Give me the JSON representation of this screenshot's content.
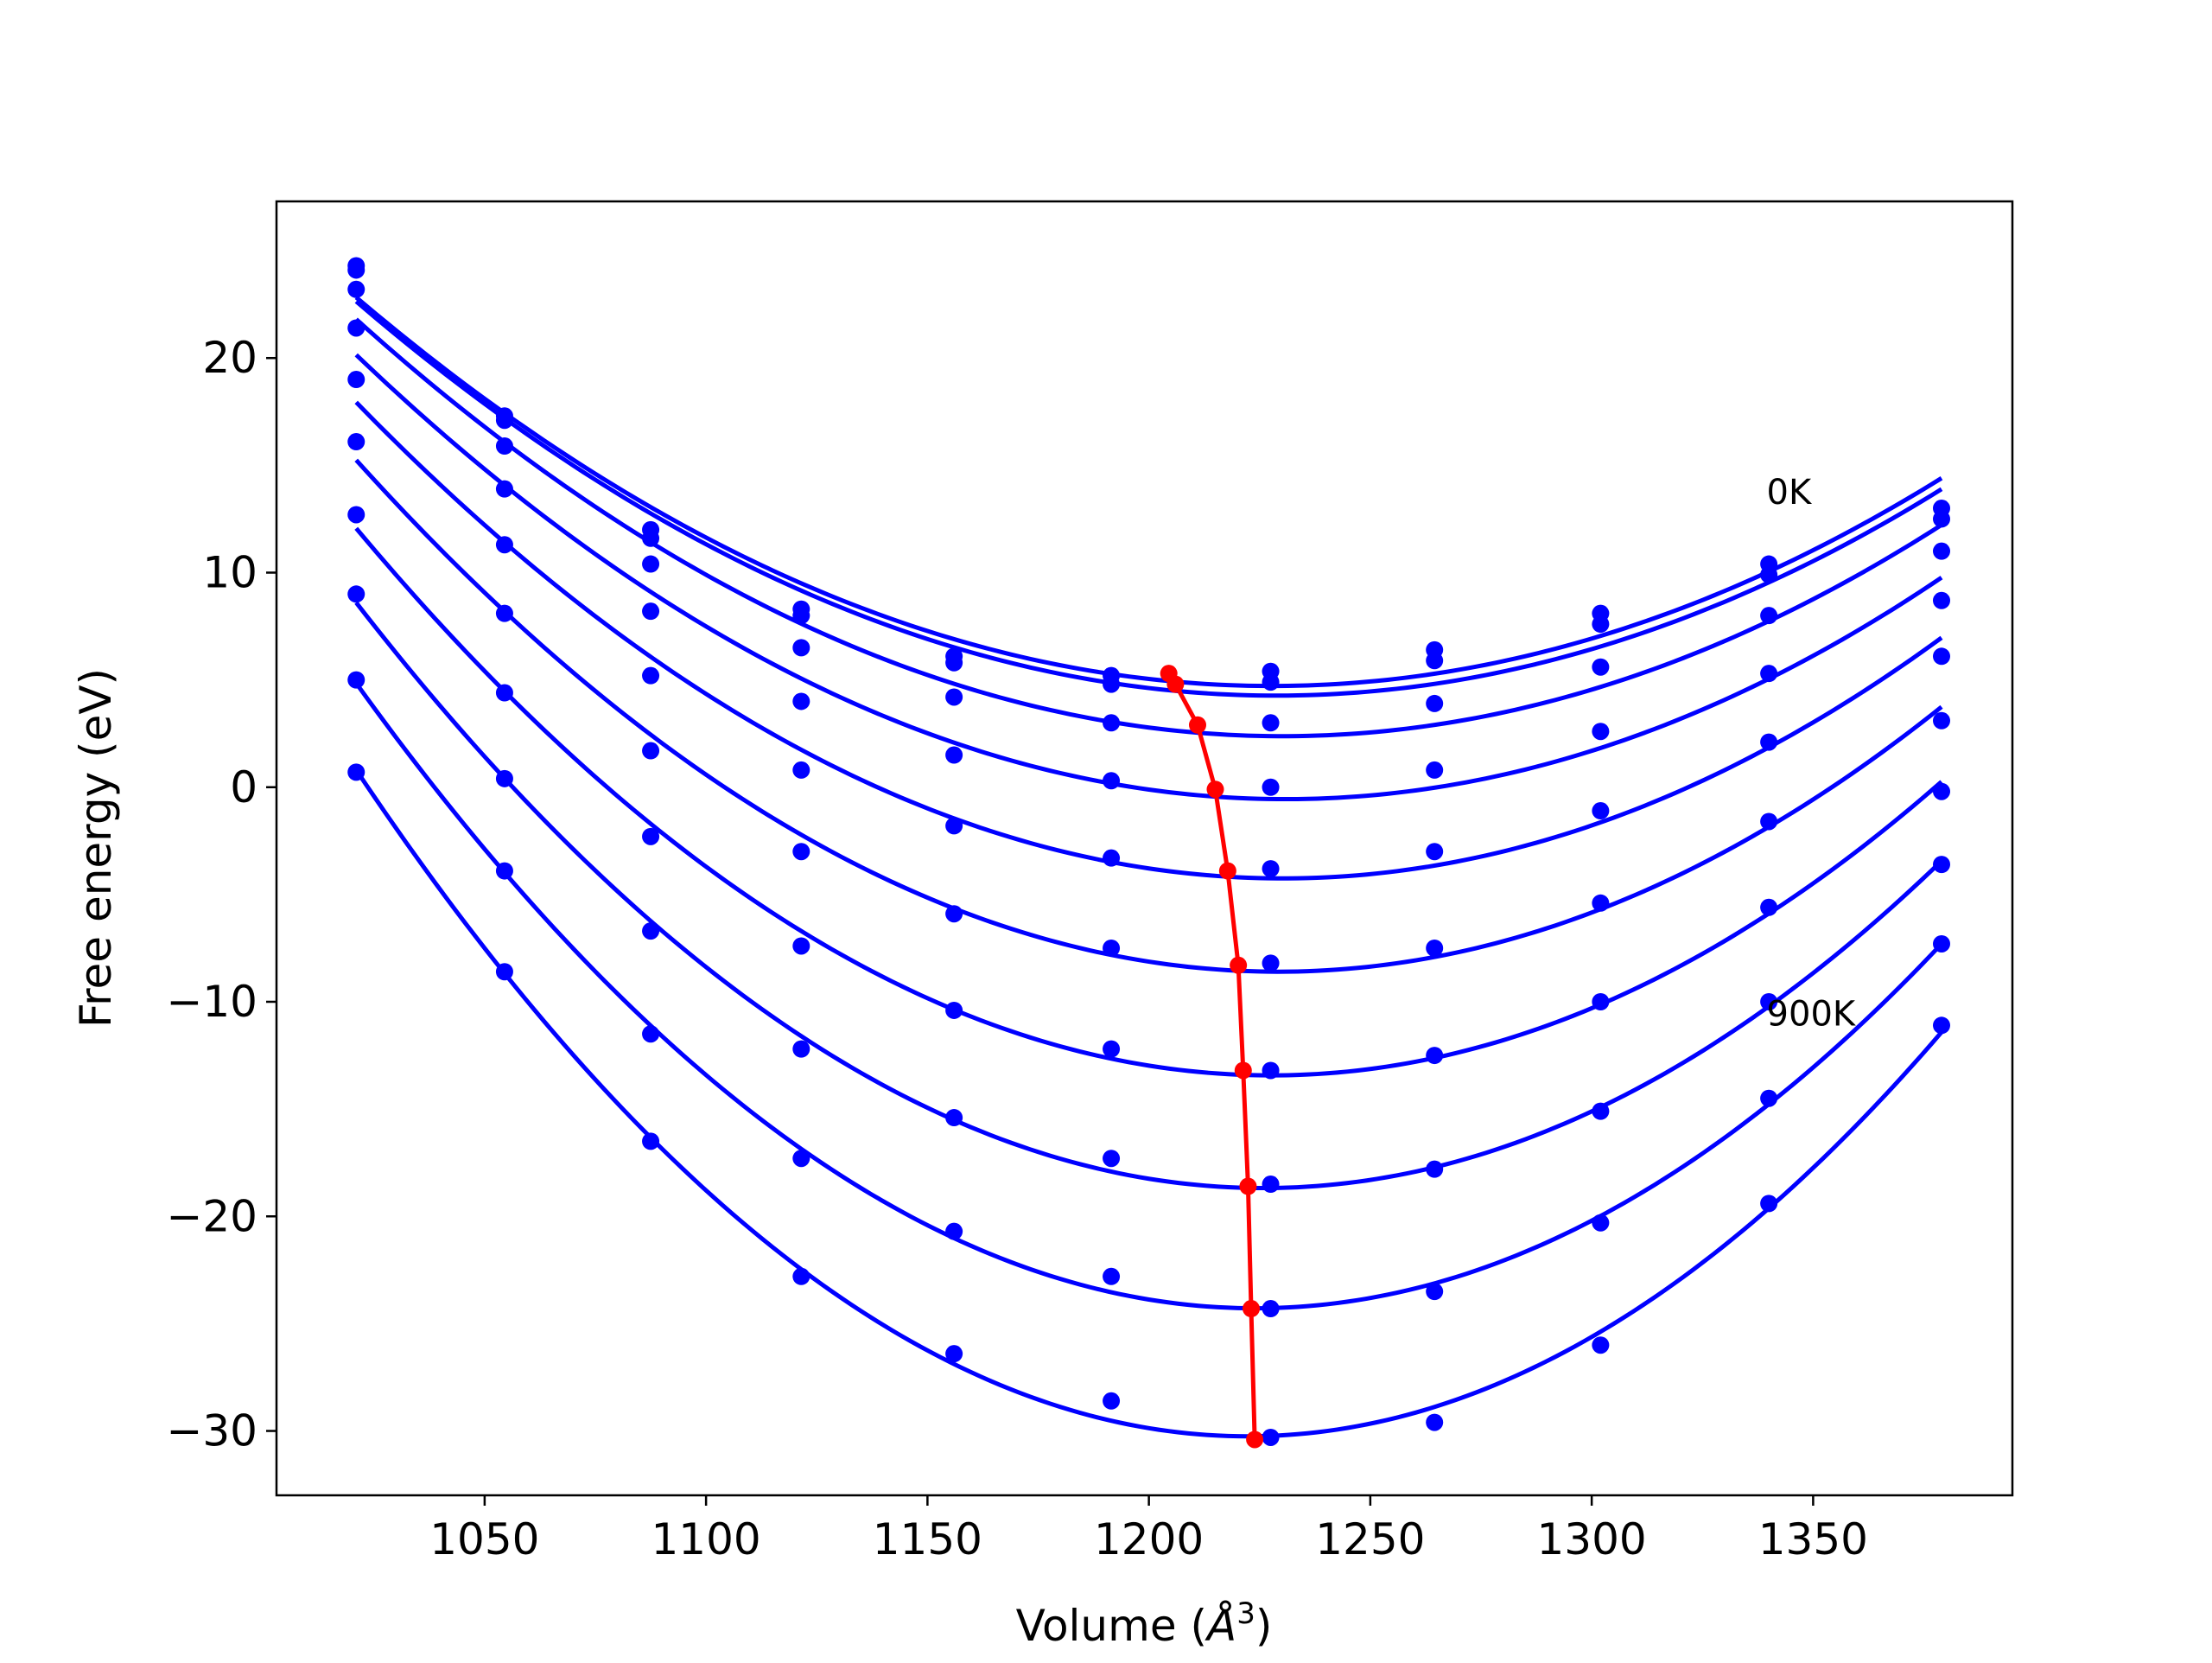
{
  "chart_data": {
    "type": "line",
    "xlabel": "Volume",
    "xlabel_unit": "Å",
    "xlabel_unit_exponent": "3",
    "ylabel": "Free energy (eV)",
    "xlim": [
      1003,
      1395
    ],
    "ylim": [
      -33,
      27.3
    ],
    "xticks": [
      1050,
      1100,
      1150,
      1200,
      1250,
      1300,
      1350
    ],
    "xtick_labels": [
      "1050",
      "1100",
      "1150",
      "1200",
      "1250",
      "1300",
      "1350"
    ],
    "yticks": [
      20,
      10,
      0,
      -10,
      -20,
      -30
    ],
    "ytick_labels": [
      "20",
      "10",
      "0",
      "−10",
      "−20",
      "−30"
    ],
    "grid": false,
    "legend": "none",
    "colors": {
      "series": "#0000ff",
      "minimum_line": "#ff0000"
    },
    "x": [
      1021,
      1054.5,
      1087.5,
      1121.5,
      1156,
      1191.5,
      1227.5,
      1264.5,
      1302,
      1340,
      1379
    ],
    "series": [
      {
        "values": [
          24.3,
          17.3,
          12.0,
          8.3,
          6.1,
          5.2,
          5.4,
          6.4,
          8.1,
          10.4,
          13.0
        ]
      },
      {
        "values": [
          24.1,
          17.1,
          11.6,
          8.0,
          5.8,
          4.8,
          4.9,
          5.9,
          7.6,
          9.9,
          12.5
        ]
      },
      {
        "values": [
          23.2,
          15.9,
          10.4,
          6.5,
          4.2,
          3.0,
          3.0,
          3.9,
          5.6,
          8.0,
          11.0
        ]
      },
      {
        "values": [
          21.4,
          13.9,
          8.2,
          4.0,
          1.5,
          0.3,
          0.0,
          0.8,
          2.6,
          5.3,
          8.7
        ]
      },
      {
        "values": [
          19.0,
          11.3,
          5.2,
          0.8,
          -1.8,
          -3.3,
          -3.8,
          -3.0,
          -1.1,
          2.1,
          6.1
        ]
      },
      {
        "values": [
          16.1,
          8.1,
          1.7,
          -3.0,
          -5.9,
          -7.5,
          -8.2,
          -7.5,
          -5.4,
          -1.6,
          3.1
        ]
      },
      {
        "values": [
          12.7,
          4.4,
          -2.3,
          -7.4,
          -10.4,
          -12.2,
          -13.2,
          -12.5,
          -10.0,
          -5.6,
          -0.2
        ]
      },
      {
        "values": [
          9.0,
          0.4,
          -6.7,
          -12.2,
          -15.4,
          -17.3,
          -18.5,
          -17.8,
          -15.1,
          -10.0,
          -3.6
        ]
      },
      {
        "values": [
          5.0,
          -3.9,
          -11.5,
          -17.3,
          -20.7,
          -22.8,
          -24.3,
          -23.5,
          -20.3,
          -14.5,
          -7.3
        ]
      },
      {
        "values": [
          0.7,
          -8.6,
          -16.5,
          -22.8,
          -26.4,
          -28.6,
          -30.3,
          -29.6,
          -26.0,
          -19.4,
          -11.1
        ]
      }
    ],
    "minimum_line": {
      "x": [
        1204.5,
        1206,
        1211,
        1215,
        1217.8,
        1220.2,
        1221.3,
        1222.4,
        1223.1,
        1223.9
      ],
      "y": [
        5.3,
        4.8,
        2.9,
        -0.1,
        -3.9,
        -8.3,
        -13.2,
        -18.6,
        -24.3,
        -30.4
      ]
    },
    "annotations": [
      {
        "text": "0K",
        "x": 1339.5,
        "y": 13.2
      },
      {
        "text": "900K",
        "x": 1339.5,
        "y": -11.1
      }
    ]
  }
}
